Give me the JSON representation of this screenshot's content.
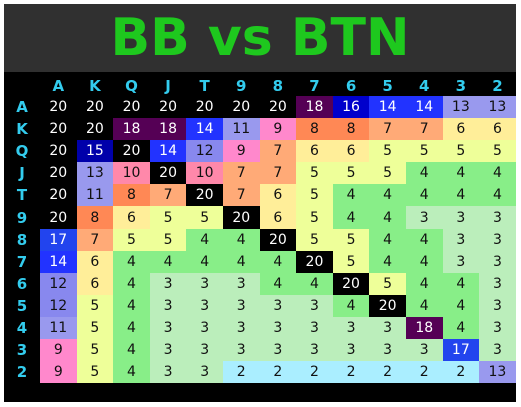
{
  "title": "BB vs BTN",
  "ranks": [
    "A",
    "K",
    "Q",
    "J",
    "T",
    "9",
    "8",
    "7",
    "6",
    "5",
    "4",
    "3",
    "2"
  ],
  "palette": {
    "2": "#aaeeff",
    "3": "#bbeebb",
    "4": "#88ee88",
    "5": "#eeff99",
    "6": "#ffee99",
    "7": "#ffaa77",
    "8": "#ff8855",
    "9": "#ff88cc",
    "10": "#ff88aa",
    "11": "#9999ee",
    "12": "#8888ee",
    "13": "#9999ee",
    "14": "#2233ff",
    "15": "#0000aa",
    "16": "#0000cc",
    "17": "#2244ee",
    "18": "#550055",
    "20": "#000000",
    "20diag": "#000000"
  },
  "matrix": [
    [
      20,
      20,
      20,
      20,
      20,
      20,
      20,
      18,
      16,
      14,
      14,
      13,
      13
    ],
    [
      20,
      20,
      18,
      18,
      14,
      11,
      9,
      8,
      8,
      7,
      7,
      6,
      6
    ],
    [
      20,
      15,
      20,
      14,
      12,
      9,
      7,
      6,
      6,
      5,
      5,
      5,
      5
    ],
    [
      20,
      13,
      10,
      20,
      10,
      7,
      7,
      5,
      5,
      5,
      4,
      4,
      4
    ],
    [
      20,
      11,
      8,
      7,
      20,
      7,
      6,
      5,
      4,
      4,
      4,
      4,
      4
    ],
    [
      20,
      8,
      6,
      5,
      5,
      20,
      6,
      5,
      4,
      4,
      3,
      3,
      3
    ],
    [
      17,
      7,
      5,
      5,
      4,
      4,
      20,
      5,
      5,
      4,
      4,
      3,
      3
    ],
    [
      14,
      6,
      4,
      4,
      4,
      4,
      4,
      20,
      5,
      4,
      4,
      3,
      3
    ],
    [
      12,
      6,
      4,
      3,
      3,
      3,
      4,
      4,
      20,
      5,
      4,
      4,
      3
    ],
    [
      12,
      5,
      4,
      3,
      3,
      3,
      3,
      3,
      4,
      20,
      4,
      4,
      3
    ],
    [
      11,
      5,
      4,
      3,
      3,
      3,
      3,
      3,
      3,
      3,
      18,
      4,
      3
    ],
    [
      9,
      5,
      4,
      3,
      3,
      3,
      3,
      3,
      3,
      3,
      3,
      17,
      3
    ],
    [
      9,
      5,
      4,
      3,
      3,
      2,
      2,
      2,
      2,
      2,
      2,
      2,
      13
    ]
  ]
}
